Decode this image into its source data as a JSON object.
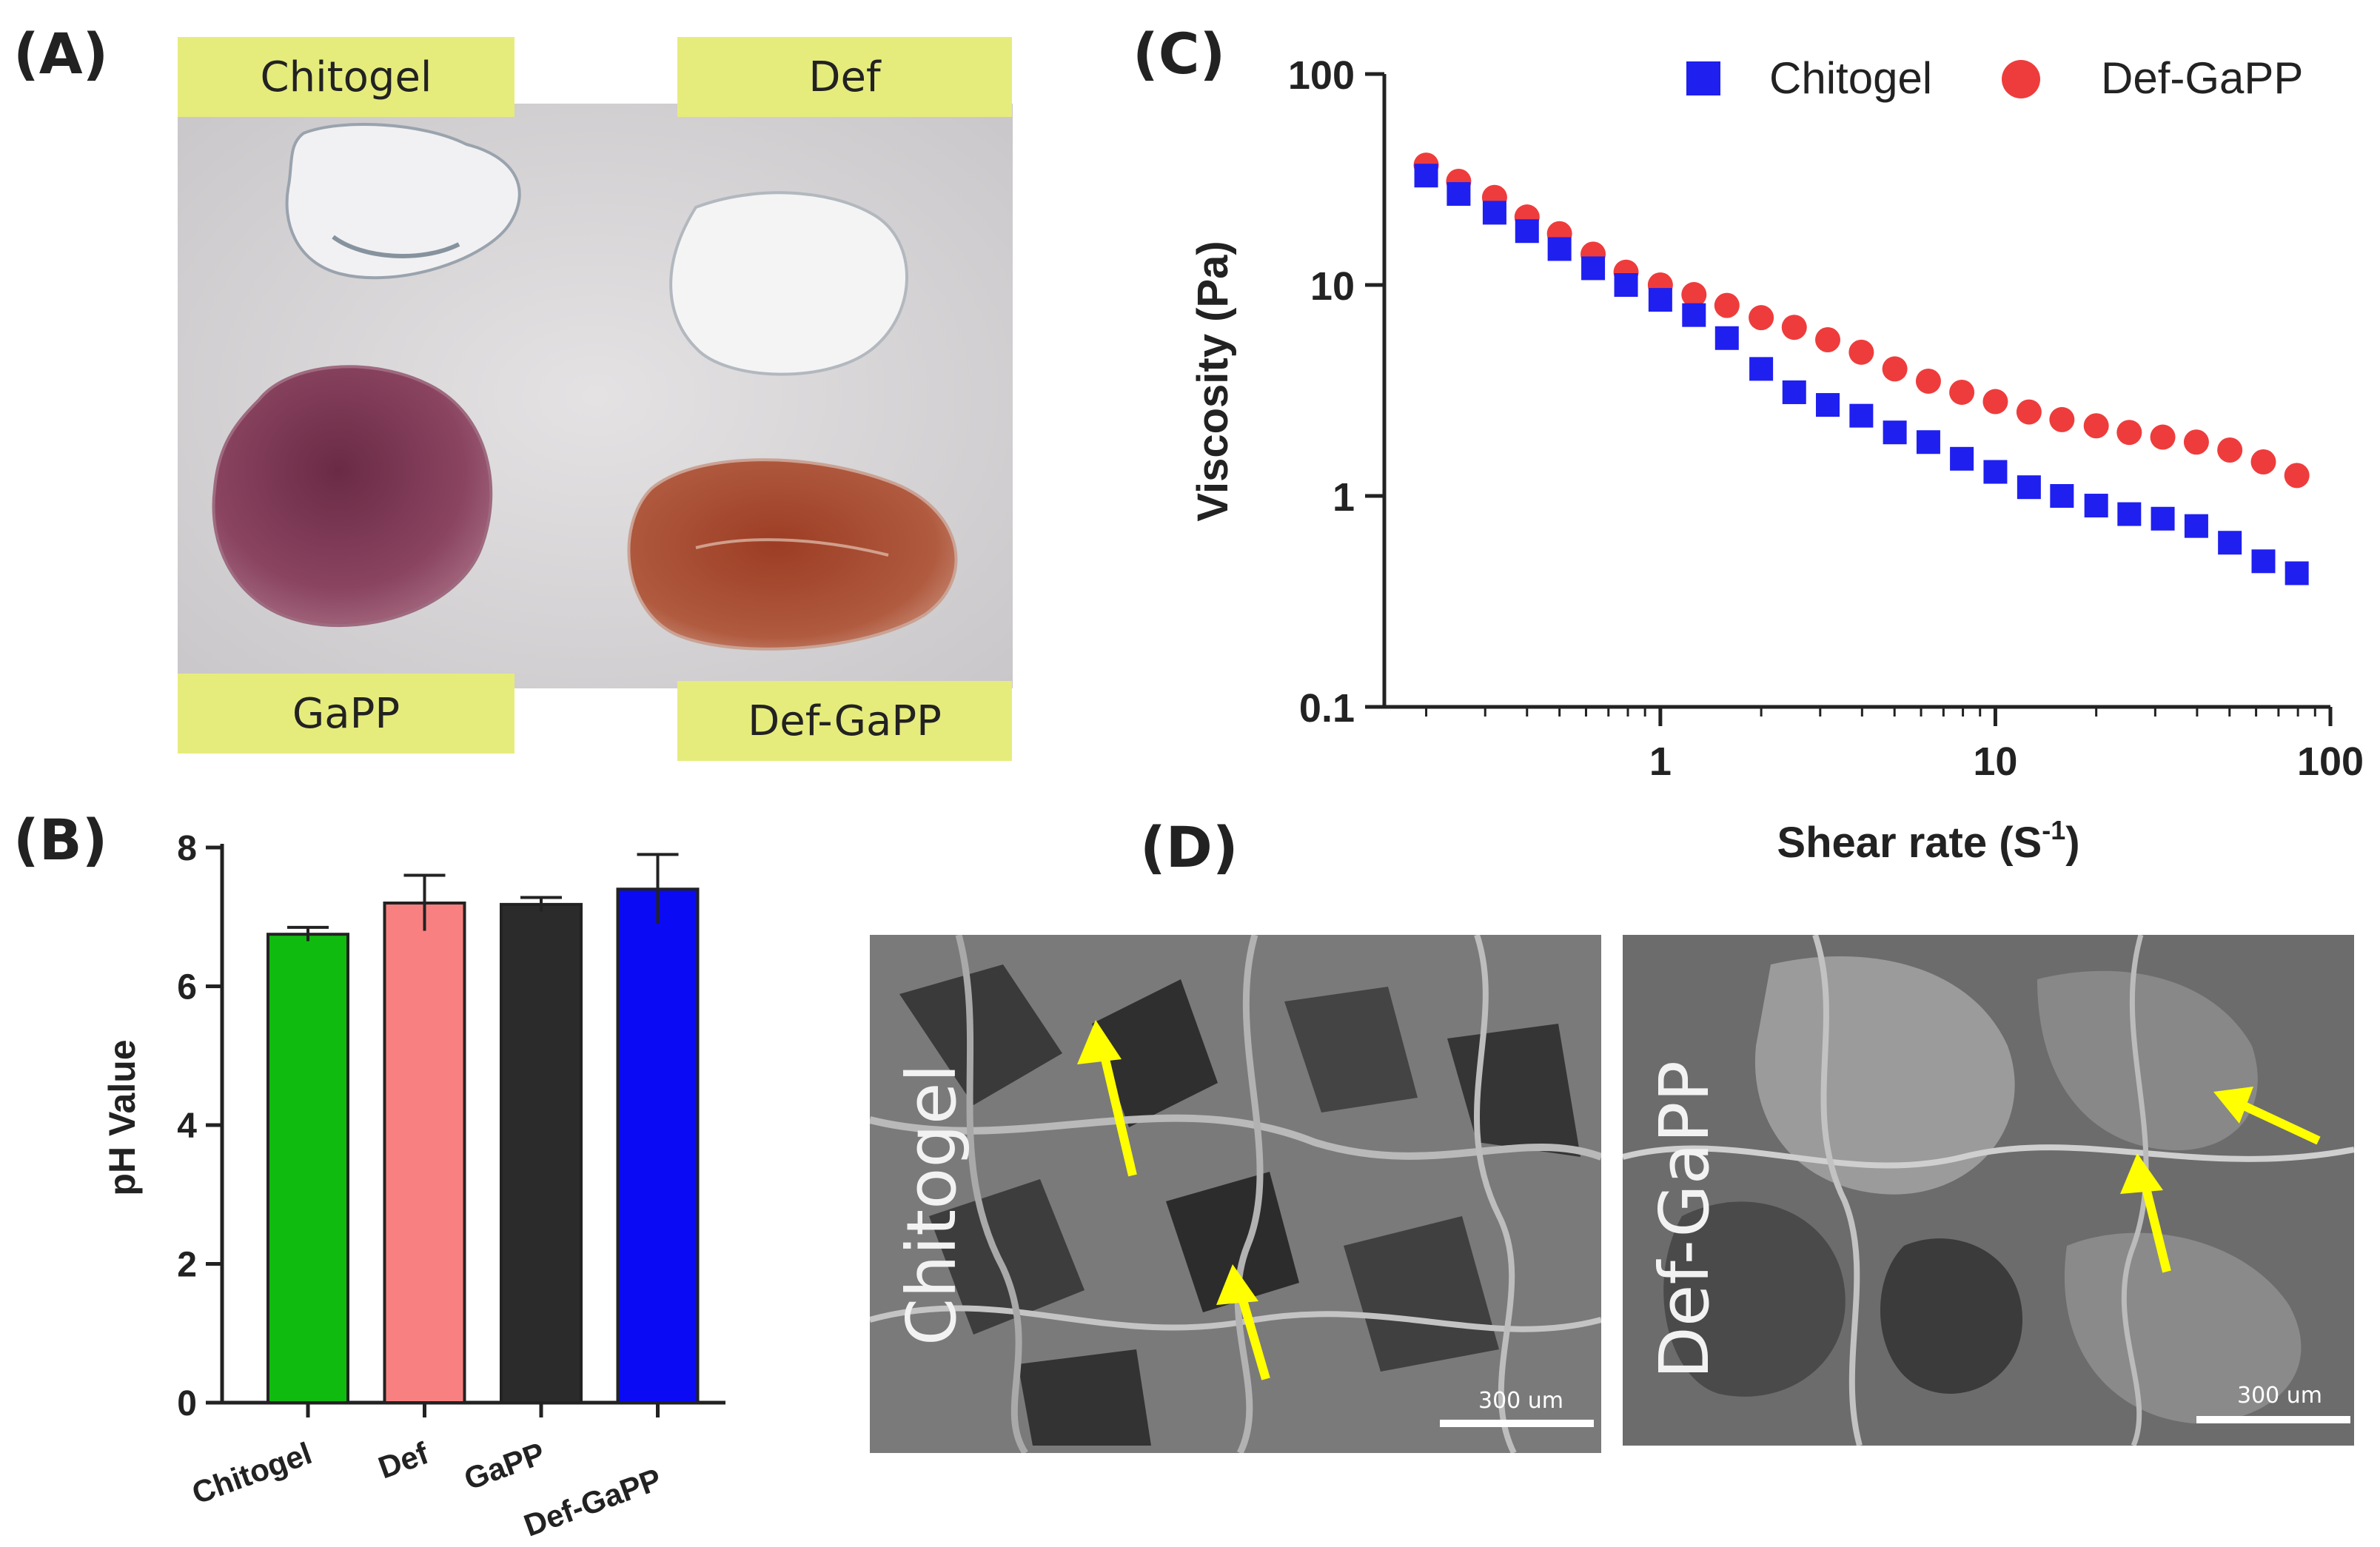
{
  "panels": {
    "a": {
      "letter": "(A)",
      "labels": [
        "Chitogel",
        "Def",
        "GaPP",
        "Def-GaPP"
      ]
    },
    "b": {
      "letter": "(B)"
    },
    "c": {
      "letter": "(C)"
    },
    "d": {
      "letter": "(D)",
      "images": [
        {
          "label": "Chitogel",
          "scale": "300 um"
        },
        {
          "label": "Def-GaPP",
          "scale": "300 um"
        }
      ]
    }
  },
  "colors": {
    "chitogel": "#10bb10",
    "def": "#f98080",
    "gapp": "#2b2b2b",
    "def_gapp": "#0a0af5",
    "series_square": "#1f1ff0",
    "series_circle": "#ee3c3c",
    "arrow": "#ffff00"
  },
  "chart_data": [
    {
      "id": "B",
      "type": "bar",
      "categories": [
        "Chitogel",
        "Def",
        "GaPP",
        "Def-GaPP"
      ],
      "values": [
        6.75,
        7.2,
        7.18,
        7.4
      ],
      "errors": [
        0.1,
        0.4,
        0.1,
        0.5
      ],
      "ylabel": "pH Value",
      "xlabel": "",
      "ylim": [
        0,
        8
      ],
      "yticks": [
        0,
        2,
        4,
        6,
        8
      ]
    },
    {
      "id": "C",
      "type": "scatter",
      "xscale": "log",
      "yscale": "log",
      "xlabel": "Shear rate (S",
      "xlabel_sup": "-1",
      "xlabel_end": ")",
      "ylabel": "Viscosity (Pa)",
      "xlim": [
        0.15,
        100
      ],
      "ylim": [
        0.1,
        100
      ],
      "xticks": [
        {
          "v": 1,
          "label": "1"
        },
        {
          "v": 10,
          "label": "10"
        },
        {
          "v": 100,
          "label": "100"
        }
      ],
      "yticks": [
        {
          "v": 0.1,
          "label": "0.1"
        },
        {
          "v": 1,
          "label": "1"
        },
        {
          "v": 10,
          "label": "10"
        },
        {
          "v": 100,
          "label": "100"
        }
      ],
      "legend_position": "top-right",
      "series": [
        {
          "name": "Chitogel",
          "marker": "square",
          "x": [
            0.2,
            0.25,
            0.32,
            0.4,
            0.5,
            0.63,
            0.79,
            1.0,
            1.26,
            1.58,
            2.0,
            2.51,
            3.16,
            3.98,
            5.01,
            6.31,
            7.94,
            10.0,
            12.6,
            15.8,
            20.0,
            25.1,
            31.6,
            39.8,
            50.1,
            63.1,
            79.4
          ],
          "y": [
            33,
            27,
            22,
            18,
            14.8,
            12,
            10,
            8.5,
            7.2,
            5.6,
            4.0,
            3.1,
            2.7,
            2.4,
            2.0,
            1.8,
            1.5,
            1.3,
            1.1,
            1.0,
            0.9,
            0.82,
            0.78,
            0.72,
            0.6,
            0.49,
            0.43
          ]
        },
        {
          "name": "Def-GaPP",
          "marker": "circle",
          "x": [
            0.2,
            0.25,
            0.32,
            0.4,
            0.5,
            0.63,
            0.79,
            1.0,
            1.26,
            1.58,
            2.0,
            2.51,
            3.16,
            3.98,
            5.01,
            6.31,
            7.94,
            10.0,
            12.6,
            15.8,
            20.0,
            25.1,
            31.6,
            39.8,
            50.1,
            63.1,
            79.4
          ],
          "y": [
            37,
            31,
            26,
            21,
            17.5,
            14,
            11.5,
            10,
            9,
            8,
            7,
            6.3,
            5.5,
            4.8,
            4.0,
            3.5,
            3.1,
            2.8,
            2.5,
            2.3,
            2.15,
            2.0,
            1.9,
            1.8,
            1.65,
            1.45,
            1.25
          ]
        }
      ]
    }
  ]
}
